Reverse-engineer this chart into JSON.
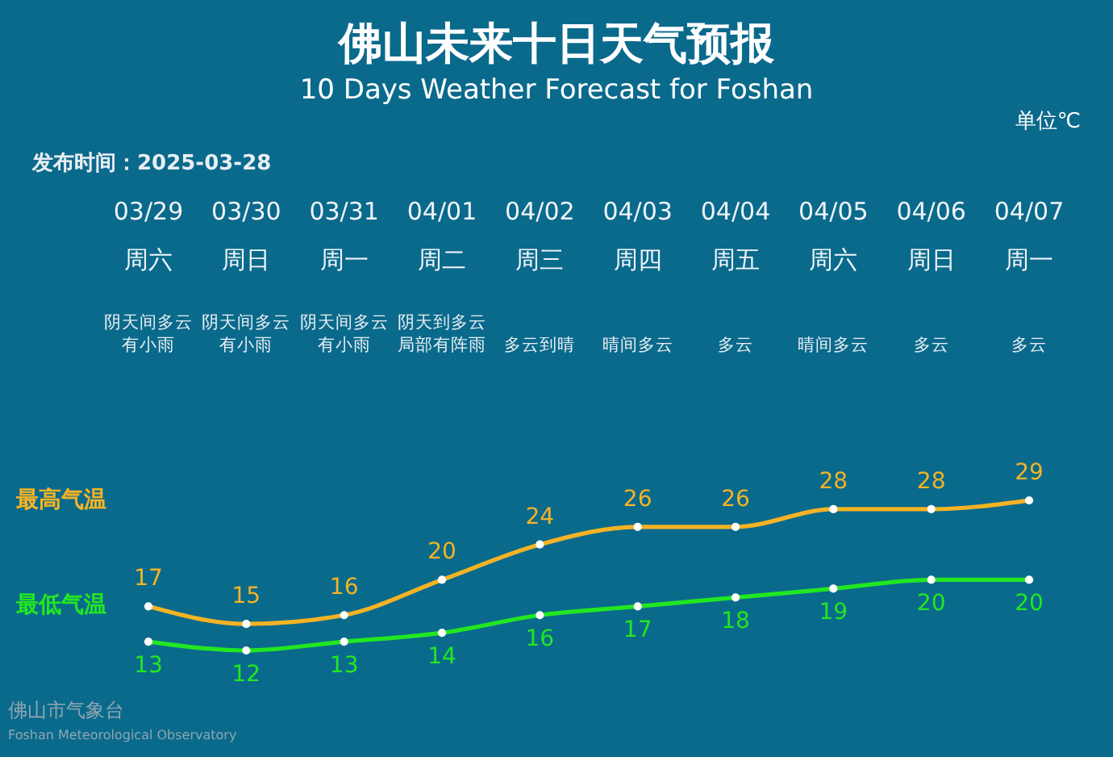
{
  "chart_data": {
    "type": "line",
    "title": "佛山未来十日天气预报",
    "subtitle": "10 Days Weather Forecast for Foshan",
    "categories": [
      "03/29",
      "03/30",
      "03/31",
      "04/01",
      "04/02",
      "04/03",
      "04/04",
      "04/05",
      "04/06",
      "04/07"
    ],
    "series": [
      {
        "name": "最高气温",
        "color": "#f5b324",
        "values": [
          17,
          15,
          16,
          20,
          24,
          26,
          26,
          28,
          28,
          29
        ]
      },
      {
        "name": "最低气温",
        "color": "#22e622",
        "values": [
          13,
          12,
          13,
          14,
          16,
          17,
          18,
          19,
          20,
          20
        ]
      }
    ],
    "data_labels": true,
    "marker": "circle",
    "line_style": "solid",
    "annotations": [
      "单位℃",
      "发布时间：2025-03-28",
      "周六",
      "周日",
      "周一",
      "周二",
      "周三",
      "周四",
      "周五",
      "周六",
      "周日",
      "周一",
      "阴天间多云有小雨",
      "阴天间多云有小雨",
      "阴天间多云有小雨",
      "阴天到多云局部有阵雨",
      "多云到晴",
      "晴间多云",
      "多云",
      "晴间多云",
      "多云",
      "多云",
      "佛山市气象台",
      "Foshan Meteorological Observatory"
    ]
  }
}
